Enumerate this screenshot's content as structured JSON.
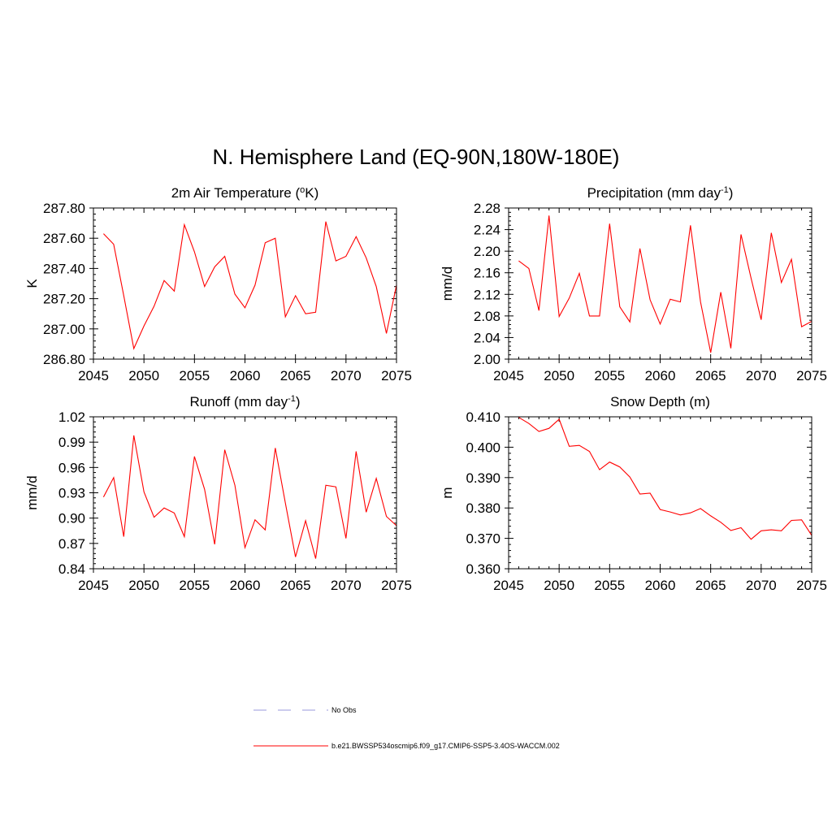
{
  "figure": {
    "title": "N. Hemisphere Land (EQ-90N,180W-180E)",
    "legend": [
      {
        "label": "No Obs",
        "color": "#9999dd",
        "dash": true
      },
      {
        "label": "b.e21.BWSSP534oscmip6.f09_g17.CMIP6-SSP5-3.4OS-WACCM.002",
        "color": "#ff0000",
        "dash": false
      }
    ]
  },
  "chart_data": [
    {
      "type": "line",
      "title": "2m Air Temperature (",
      "title_super": "o",
      "title_after": "K)",
      "xlabel": "",
      "ylabel": "K",
      "xlim": [
        2045,
        2075
      ],
      "ylim": [
        286.8,
        287.8
      ],
      "xticks": [
        2045,
        2050,
        2055,
        2060,
        2065,
        2070,
        2075
      ],
      "xtick_labels": [
        "2045",
        "2050",
        "2055",
        "2060",
        "2065",
        "2070",
        "2075"
      ],
      "yticks": [
        286.8,
        287.0,
        287.2,
        287.4,
        287.6,
        287.8
      ],
      "ytick_labels": [
        "286.80",
        "287.00",
        "287.20",
        "287.40",
        "287.60",
        "287.80"
      ],
      "x": [
        2046,
        2047,
        2048,
        2049,
        2050,
        2051,
        2052,
        2053,
        2054,
        2055,
        2056,
        2057,
        2058,
        2059,
        2060,
        2061,
        2062,
        2063,
        2064,
        2065,
        2066,
        2067,
        2068,
        2069,
        2070,
        2071,
        2072,
        2073,
        2074,
        2075
      ],
      "series": [
        {
          "name": "b.e21.BWSSP534oscmip6.f09_g17.CMIP6-SSP5-3.4OS-WACCM.002",
          "color": "#ff0000",
          "values": [
            287.63,
            287.56,
            287.22,
            286.87,
            287.02,
            287.15,
            287.32,
            287.25,
            287.69,
            287.51,
            287.28,
            287.41,
            287.48,
            287.23,
            287.14,
            287.29,
            287.57,
            287.6,
            287.08,
            287.22,
            287.1,
            287.11,
            287.71,
            287.45,
            287.48,
            287.61,
            287.47,
            287.28,
            286.97,
            287.29
          ]
        }
      ]
    },
    {
      "type": "line",
      "title": "Precipitation (mm day",
      "title_super": "-1",
      "title_after": ")",
      "xlabel": "",
      "ylabel": "mm/d",
      "xlim": [
        2045,
        2075
      ],
      "ylim": [
        2.0,
        2.28
      ],
      "xticks": [
        2045,
        2050,
        2055,
        2060,
        2065,
        2070,
        2075
      ],
      "xtick_labels": [
        "2045",
        "2050",
        "2055",
        "2060",
        "2065",
        "2070",
        "2075"
      ],
      "yticks": [
        2.0,
        2.04,
        2.08,
        2.12,
        2.16,
        2.2,
        2.24,
        2.28
      ],
      "ytick_labels": [
        "2.00",
        "2.04",
        "2.08",
        "2.12",
        "2.16",
        "2.20",
        "2.24",
        "2.28"
      ],
      "x": [
        2046,
        2047,
        2048,
        2049,
        2050,
        2051,
        2052,
        2053,
        2054,
        2055,
        2056,
        2057,
        2058,
        2059,
        2060,
        2061,
        2062,
        2063,
        2064,
        2065,
        2066,
        2067,
        2068,
        2069,
        2070,
        2071,
        2072,
        2073,
        2074,
        2075
      ],
      "series": [
        {
          "name": "b.e21.BWSSP534oscmip6.f09_g17.CMIP6-SSP5-3.4OS-WACCM.002",
          "color": "#ff0000",
          "values": [
            2.182,
            2.168,
            2.09,
            2.266,
            2.079,
            2.113,
            2.159,
            2.08,
            2.08,
            2.251,
            2.097,
            2.069,
            2.205,
            2.11,
            2.065,
            2.111,
            2.106,
            2.248,
            2.106,
            2.012,
            2.124,
            2.02,
            2.231,
            2.15,
            2.073,
            2.234,
            2.142,
            2.185,
            2.06,
            2.07
          ]
        }
      ]
    },
    {
      "type": "line",
      "title": "Runoff (mm day",
      "title_super": "-1",
      "title_after": ")",
      "xlabel": "",
      "ylabel": "mm/d",
      "xlim": [
        2045,
        2075
      ],
      "ylim": [
        0.84,
        1.02
      ],
      "xticks": [
        2045,
        2050,
        2055,
        2060,
        2065,
        2070,
        2075
      ],
      "xtick_labels": [
        "2045",
        "2050",
        "2055",
        "2060",
        "2065",
        "2070",
        "2075"
      ],
      "yticks": [
        0.84,
        0.87,
        0.9,
        0.93,
        0.96,
        0.99,
        1.02
      ],
      "ytick_labels": [
        "0.84",
        "0.87",
        "0.90",
        "0.93",
        "0.96",
        "0.99",
        "1.02"
      ],
      "x": [
        2046,
        2047,
        2048,
        2049,
        2050,
        2051,
        2052,
        2053,
        2054,
        2055,
        2056,
        2057,
        2058,
        2059,
        2060,
        2061,
        2062,
        2063,
        2064,
        2065,
        2066,
        2067,
        2068,
        2069,
        2070,
        2071,
        2072,
        2073,
        2074,
        2075
      ],
      "series": [
        {
          "name": "b.e21.BWSSP534oscmip6.f09_g17.CMIP6-SSP5-3.4OS-WACCM.002",
          "color": "#ff0000",
          "values": [
            0.925,
            0.948,
            0.878,
            0.998,
            0.931,
            0.901,
            0.912,
            0.906,
            0.878,
            0.973,
            0.934,
            0.869,
            0.981,
            0.939,
            0.865,
            0.898,
            0.886,
            0.983,
            0.918,
            0.854,
            0.897,
            0.852,
            0.939,
            0.937,
            0.876,
            0.979,
            0.907,
            0.947,
            0.902,
            0.891
          ]
        }
      ]
    },
    {
      "type": "line",
      "title": "Snow Depth (m)",
      "title_super": "",
      "title_after": "",
      "xlabel": "",
      "ylabel": "m",
      "xlim": [
        2045,
        2075
      ],
      "ylim": [
        0.36,
        0.41
      ],
      "xticks": [
        2045,
        2050,
        2055,
        2060,
        2065,
        2070,
        2075
      ],
      "xtick_labels": [
        "2045",
        "2050",
        "2055",
        "2060",
        "2065",
        "2070",
        "2075"
      ],
      "yticks": [
        0.36,
        0.37,
        0.38,
        0.39,
        0.4,
        0.41
      ],
      "ytick_labels": [
        "0.360",
        "0.370",
        "0.380",
        "0.390",
        "0.400",
        "0.410"
      ],
      "x": [
        2046,
        2047,
        2048,
        2049,
        2050,
        2051,
        2052,
        2053,
        2054,
        2055,
        2056,
        2057,
        2058,
        2059,
        2060,
        2061,
        2062,
        2063,
        2064,
        2065,
        2066,
        2067,
        2068,
        2069,
        2070,
        2071,
        2072,
        2073,
        2074,
        2075
      ],
      "series": [
        {
          "name": "b.e21.BWSSP534oscmip6.f09_g17.CMIP6-SSP5-3.4OS-WACCM.002",
          "color": "#ff0000",
          "values": [
            0.4098,
            0.4078,
            0.4052,
            0.4062,
            0.4092,
            0.4003,
            0.4006,
            0.3986,
            0.3926,
            0.3951,
            0.3935,
            0.3902,
            0.3846,
            0.3849,
            0.3795,
            0.3787,
            0.3777,
            0.3784,
            0.3798,
            0.3774,
            0.3753,
            0.3726,
            0.3735,
            0.3697,
            0.3725,
            0.3728,
            0.3725,
            0.3759,
            0.3761,
            0.371
          ]
        }
      ]
    }
  ]
}
